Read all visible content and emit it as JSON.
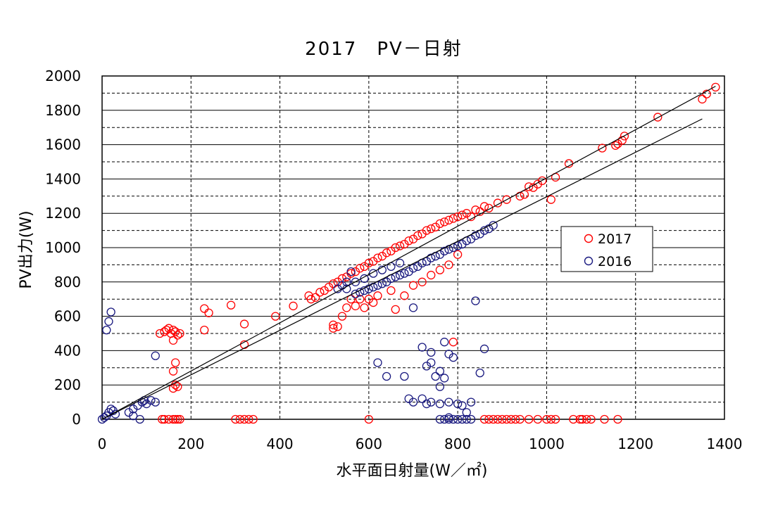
{
  "chart_data": {
    "type": "scatter",
    "title": "2017　PV－日射",
    "xlabel": "水平面日射量(W／㎡)",
    "ylabel": "PV出力(W)",
    "xlim": [
      0,
      1400
    ],
    "ylim": [
      0,
      2000
    ],
    "x_ticks": [
      0,
      200,
      400,
      600,
      800,
      1000,
      1200,
      1400
    ],
    "y_ticks": [
      0,
      200,
      400,
      600,
      800,
      1000,
      1200,
      1400,
      1600,
      1800,
      2000
    ],
    "grid": true,
    "legend_position": "right",
    "colors": {
      "s2017": "#ff0000",
      "s2016": "#1a1a80",
      "trend": "#000000",
      "grid": "#000000"
    },
    "trendlines": [
      {
        "series": "2017",
        "x": [
          0,
          1380
        ],
        "y": [
          0,
          1940
        ]
      },
      {
        "series": "2016",
        "x": [
          0,
          1350
        ],
        "y": [
          0,
          1750
        ]
      }
    ],
    "series": [
      {
        "name": "2017",
        "color": "#ff0000",
        "points": [
          [
            1380,
            1935
          ],
          [
            1360,
            1895
          ],
          [
            1350,
            1865
          ],
          [
            1250,
            1760
          ],
          [
            1175,
            1650
          ],
          [
            1170,
            1625
          ],
          [
            1160,
            1605
          ],
          [
            1155,
            1595
          ],
          [
            1125,
            1580
          ],
          [
            1050,
            1490
          ],
          [
            1020,
            1410
          ],
          [
            1010,
            1280
          ],
          [
            990,
            1390
          ],
          [
            980,
            1370
          ],
          [
            970,
            1350
          ],
          [
            960,
            1355
          ],
          [
            950,
            1310
          ],
          [
            940,
            1300
          ],
          [
            910,
            1280
          ],
          [
            890,
            1260
          ],
          [
            870,
            1230
          ],
          [
            860,
            1240
          ],
          [
            850,
            1210
          ],
          [
            840,
            1220
          ],
          [
            830,
            1180
          ],
          [
            820,
            1200
          ],
          [
            810,
            1190
          ],
          [
            800,
            1180
          ],
          [
            790,
            1170
          ],
          [
            780,
            1160
          ],
          [
            770,
            1150
          ],
          [
            760,
            1140
          ],
          [
            750,
            1120
          ],
          [
            740,
            1110
          ],
          [
            730,
            1100
          ],
          [
            720,
            1080
          ],
          [
            710,
            1070
          ],
          [
            700,
            1050
          ],
          [
            690,
            1040
          ],
          [
            680,
            1020
          ],
          [
            670,
            1010
          ],
          [
            660,
            1000
          ],
          [
            650,
            980
          ],
          [
            640,
            970
          ],
          [
            630,
            950
          ],
          [
            620,
            940
          ],
          [
            610,
            920
          ],
          [
            600,
            910
          ],
          [
            590,
            890
          ],
          [
            580,
            880
          ],
          [
            570,
            860
          ],
          [
            560,
            850
          ],
          [
            550,
            830
          ],
          [
            540,
            820
          ],
          [
            530,
            800
          ],
          [
            520,
            790
          ],
          [
            510,
            770
          ],
          [
            500,
            750
          ],
          [
            490,
            740
          ],
          [
            480,
            710
          ],
          [
            470,
            700
          ],
          [
            465,
            720
          ],
          [
            430,
            660
          ],
          [
            390,
            600
          ],
          [
            320,
            555
          ],
          [
            320,
            435
          ],
          [
            290,
            665
          ],
          [
            240,
            620
          ],
          [
            230,
            520
          ],
          [
            230,
            645
          ],
          [
            520,
            550
          ],
          [
            520,
            530
          ],
          [
            530,
            540
          ],
          [
            540,
            600
          ],
          [
            550,
            650
          ],
          [
            560,
            700
          ],
          [
            570,
            660
          ],
          [
            580,
            700
          ],
          [
            590,
            650
          ],
          [
            600,
            700
          ],
          [
            610,
            680
          ],
          [
            620,
            720
          ],
          [
            650,
            750
          ],
          [
            660,
            640
          ],
          [
            680,
            720
          ],
          [
            700,
            780
          ],
          [
            720,
            800
          ],
          [
            740,
            840
          ],
          [
            760,
            870
          ],
          [
            780,
            900
          ],
          [
            790,
            450
          ],
          [
            800,
            960
          ],
          [
            600,
            0
          ],
          [
            135,
            0
          ],
          [
            140,
            0
          ],
          [
            150,
            0
          ],
          [
            160,
            0
          ],
          [
            165,
            0
          ],
          [
            170,
            0
          ],
          [
            175,
            0
          ],
          [
            300,
            0
          ],
          [
            310,
            0
          ],
          [
            320,
            0
          ],
          [
            330,
            0
          ],
          [
            340,
            0
          ],
          [
            860,
            0
          ],
          [
            870,
            0
          ],
          [
            880,
            0
          ],
          [
            890,
            0
          ],
          [
            900,
            0
          ],
          [
            910,
            0
          ],
          [
            920,
            0
          ],
          [
            930,
            0
          ],
          [
            940,
            0
          ],
          [
            960,
            0
          ],
          [
            980,
            0
          ],
          [
            1000,
            0
          ],
          [
            1010,
            0
          ],
          [
            1020,
            0
          ],
          [
            1060,
            0
          ],
          [
            1075,
            0
          ],
          [
            1080,
            0
          ],
          [
            1090,
            0
          ],
          [
            1100,
            0
          ],
          [
            1130,
            0
          ],
          [
            1160,
            0
          ],
          [
            130,
            500
          ],
          [
            140,
            510
          ],
          [
            145,
            520
          ],
          [
            150,
            530
          ],
          [
            155,
            500
          ],
          [
            160,
            520
          ],
          [
            165,
            510
          ],
          [
            170,
            490
          ],
          [
            175,
            500
          ],
          [
            160,
            460
          ],
          [
            165,
            330
          ],
          [
            160,
            280
          ],
          [
            165,
            200
          ],
          [
            170,
            190
          ],
          [
            160,
            180
          ]
        ]
      },
      {
        "name": "2016",
        "color": "#1a1a80",
        "points": [
          [
            0,
            0
          ],
          [
            5,
            10
          ],
          [
            10,
            20
          ],
          [
            15,
            40
          ],
          [
            20,
            60
          ],
          [
            25,
            50
          ],
          [
            30,
            30
          ],
          [
            10,
            520
          ],
          [
            15,
            570
          ],
          [
            20,
            625
          ],
          [
            60,
            40
          ],
          [
            70,
            60
          ],
          [
            80,
            80
          ],
          [
            90,
            100
          ],
          [
            95,
            110
          ],
          [
            100,
            90
          ],
          [
            110,
            110
          ],
          [
            120,
            370
          ],
          [
            120,
            100
          ],
          [
            85,
            0
          ],
          [
            70,
            20
          ],
          [
            880,
            1130
          ],
          [
            870,
            1110
          ],
          [
            860,
            1100
          ],
          [
            850,
            1080
          ],
          [
            840,
            1070
          ],
          [
            830,
            1050
          ],
          [
            820,
            1040
          ],
          [
            810,
            1020
          ],
          [
            800,
            1010
          ],
          [
            790,
            1000
          ],
          [
            780,
            990
          ],
          [
            770,
            980
          ],
          [
            760,
            960
          ],
          [
            750,
            950
          ],
          [
            740,
            940
          ],
          [
            730,
            920
          ],
          [
            720,
            910
          ],
          [
            710,
            890
          ],
          [
            700,
            880
          ],
          [
            690,
            860
          ],
          [
            680,
            850
          ],
          [
            670,
            840
          ],
          [
            660,
            830
          ],
          [
            650,
            820
          ],
          [
            640,
            800
          ],
          [
            630,
            790
          ],
          [
            620,
            780
          ],
          [
            610,
            770
          ],
          [
            600,
            760
          ],
          [
            590,
            750
          ],
          [
            580,
            740
          ],
          [
            570,
            730
          ],
          [
            560,
            860
          ],
          [
            550,
            800
          ],
          [
            540,
            780
          ],
          [
            530,
            760
          ],
          [
            550,
            760
          ],
          [
            570,
            800
          ],
          [
            590,
            820
          ],
          [
            610,
            850
          ],
          [
            630,
            870
          ],
          [
            650,
            890
          ],
          [
            670,
            910
          ],
          [
            700,
            650
          ],
          [
            720,
            420
          ],
          [
            730,
            310
          ],
          [
            740,
            330
          ],
          [
            740,
            390
          ],
          [
            750,
            250
          ],
          [
            760,
            280
          ],
          [
            760,
            190
          ],
          [
            770,
            240
          ],
          [
            770,
            450
          ],
          [
            780,
            380
          ],
          [
            790,
            360
          ],
          [
            700,
            100
          ],
          [
            720,
            120
          ],
          [
            730,
            90
          ],
          [
            740,
            100
          ],
          [
            760,
            90
          ],
          [
            780,
            100
          ],
          [
            800,
            90
          ],
          [
            810,
            80
          ],
          [
            820,
            40
          ],
          [
            830,
            100
          ],
          [
            840,
            690
          ],
          [
            850,
            270
          ],
          [
            860,
            410
          ],
          [
            680,
            250
          ],
          [
            690,
            120
          ],
          [
            780,
            0
          ],
          [
            790,
            0
          ],
          [
            800,
            0
          ],
          [
            810,
            0
          ],
          [
            820,
            0
          ],
          [
            830,
            0
          ],
          [
            780,
            10
          ],
          [
            760,
            0
          ],
          [
            770,
            0
          ],
          [
            620,
            330
          ],
          [
            640,
            250
          ]
        ]
      }
    ]
  }
}
